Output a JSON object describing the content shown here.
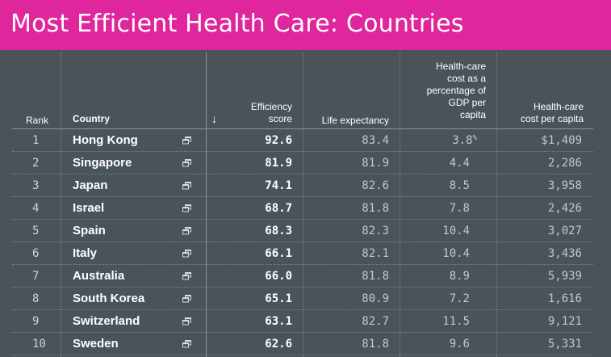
{
  "title": "Most Efficient Health Care: Countries",
  "colors": {
    "title_bg": "#e0269c",
    "table_bg": "#4a525a"
  },
  "headers": {
    "rank": "Rank",
    "country": "Country",
    "sort_indicator": "↓",
    "efficiency": [
      "Efficiency",
      "score"
    ],
    "life": "Life expectancy",
    "gdp": [
      "Health-care",
      "cost as a",
      "percentage of",
      "GDP per",
      "capita"
    ],
    "cost": [
      "Health-care",
      "cost per capita"
    ]
  },
  "rows": [
    {
      "rank": "1",
      "country": "Hong Kong",
      "efficiency": "92.6",
      "life": "83.4",
      "gdp": "3.8",
      "gdp_suffix": "%",
      "cost": "$1,409"
    },
    {
      "rank": "2",
      "country": "Singapore",
      "efficiency": "81.9",
      "life": "81.9",
      "gdp": "4.4",
      "gdp_suffix": "",
      "cost": "2,286"
    },
    {
      "rank": "3",
      "country": "Japan",
      "efficiency": "74.1",
      "life": "82.6",
      "gdp": "8.5",
      "gdp_suffix": "",
      "cost": "3,958"
    },
    {
      "rank": "4",
      "country": "Israel",
      "efficiency": "68.7",
      "life": "81.8",
      "gdp": "7.8",
      "gdp_suffix": "",
      "cost": "2,426"
    },
    {
      "rank": "5",
      "country": "Spain",
      "efficiency": "68.3",
      "life": "82.3",
      "gdp": "10.4",
      "gdp_suffix": "",
      "cost": "3,027"
    },
    {
      "rank": "6",
      "country": "Italy",
      "efficiency": "66.1",
      "life": "82.1",
      "gdp": "10.4",
      "gdp_suffix": "",
      "cost": "3,436"
    },
    {
      "rank": "7",
      "country": "Australia",
      "efficiency": "66.0",
      "life": "81.8",
      "gdp": "8.9",
      "gdp_suffix": "",
      "cost": "5,939"
    },
    {
      "rank": "8",
      "country": "South Korea",
      "efficiency": "65.1",
      "life": "80.9",
      "gdp": "7.2",
      "gdp_suffix": "",
      "cost": "1,616"
    },
    {
      "rank": "9",
      "country": "Switzerland",
      "efficiency": "63.1",
      "life": "82.7",
      "gdp": "11.5",
      "gdp_suffix": "",
      "cost": "9,121"
    },
    {
      "rank": "10",
      "country": "Sweden",
      "efficiency": "62.6",
      "life": "81.8",
      "gdp": "9.6",
      "gdp_suffix": "",
      "cost": "5,331"
    }
  ]
}
